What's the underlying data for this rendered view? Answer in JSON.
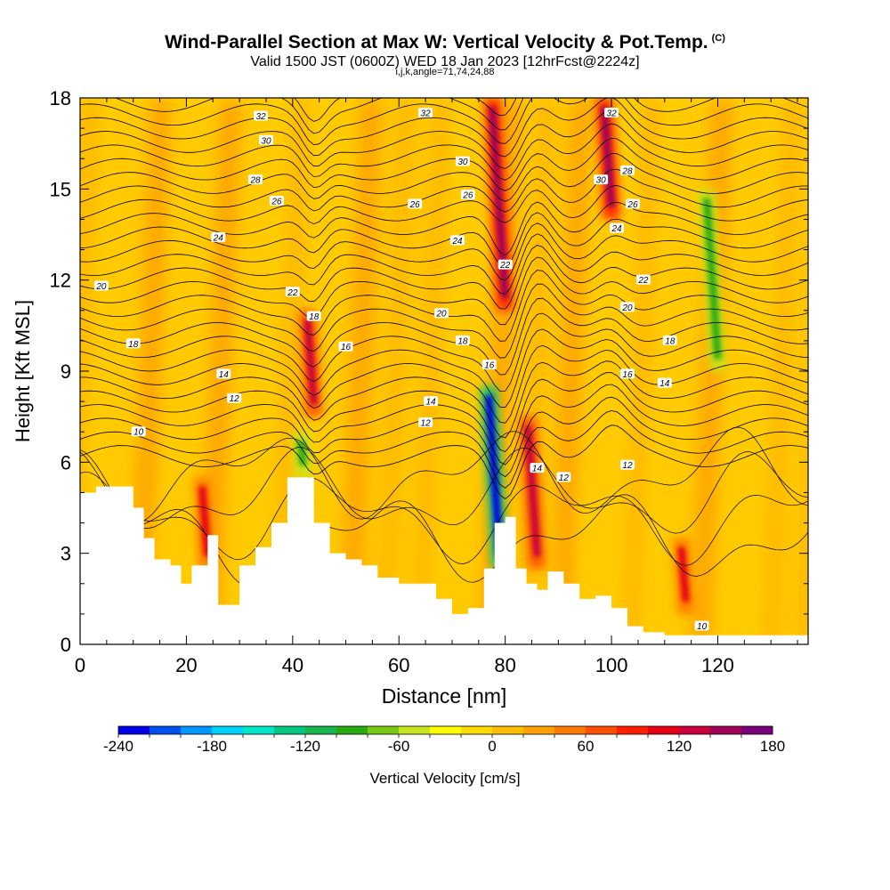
{
  "header": {
    "title": "Wind-Parallel Section at Max W: Vertical Velocity & Pot.Temp.",
    "title_mark": "(C)",
    "subtitle": "Valid 1500 JST (0600Z) WED 18 Jan 2023 [12hrFcst@2224z]",
    "subtitle2": "i,j,k,angle=71,74,24,88"
  },
  "chart_data": {
    "type": "heatmap",
    "xlabel": "Distance [nm]",
    "ylabel": "Height [Kft MSL]",
    "xlim": [
      0,
      137
    ],
    "ylim": [
      0,
      18
    ],
    "x_ticks": [
      0,
      20,
      40,
      60,
      80,
      100,
      120
    ],
    "y_ticks": [
      0,
      3,
      6,
      9,
      12,
      15,
      18
    ],
    "colorbar": {
      "label": "Vertical Velocity [cm/s]",
      "ticks": [
        -240,
        -180,
        -120,
        -60,
        0,
        60,
        120,
        180
      ],
      "colors": [
        "#0000e6",
        "#0050f0",
        "#0096ff",
        "#00d2ff",
        "#00e6c8",
        "#00c880",
        "#18b44c",
        "#28aa14",
        "#78c814",
        "#c8e61e",
        "#ffff00",
        "#ffdc00",
        "#ffbe00",
        "#ffa000",
        "#ff7800",
        "#ff5000",
        "#ff1e00",
        "#e60014",
        "#c8003c",
        "#a0005a",
        "#780078"
      ]
    },
    "background_value_label": "0",
    "updraft_bands": [
      {
        "x": 24,
        "top": 5.5,
        "bottom": 2.5,
        "value": 100
      },
      {
        "x": 44,
        "top": 11,
        "bottom": 7.5,
        "value": 120
      },
      {
        "x": 80,
        "top": 18,
        "bottom": 11,
        "value": 150
      },
      {
        "x": 86,
        "top": 7.5,
        "bottom": 2.5,
        "value": 130
      },
      {
        "x": 100,
        "top": 18,
        "bottom": 14,
        "value": 150
      },
      {
        "x": 114,
        "top": 3.5,
        "bottom": 1,
        "value": 100
      }
    ],
    "downdraft_bands": [
      {
        "x": 79,
        "top": 8.5,
        "bottom": 2.5,
        "value": -230
      },
      {
        "x": 42,
        "top": 7,
        "bottom": 5.5,
        "value": -90
      },
      {
        "x": 120,
        "top": 15,
        "bottom": 9,
        "value": -90
      }
    ],
    "isentrope_labels": [
      "10",
      "12",
      "14",
      "16",
      "18",
      "20",
      "22",
      "24",
      "26",
      "28",
      "30",
      "32"
    ],
    "terrain": [
      {
        "x": 0,
        "y": 5.0
      },
      {
        "x": 3,
        "y": 5.2
      },
      {
        "x": 8,
        "y": 5.2
      },
      {
        "x": 10,
        "y": 4.5
      },
      {
        "x": 12,
        "y": 3.5
      },
      {
        "x": 14,
        "y": 2.8
      },
      {
        "x": 17,
        "y": 2.6
      },
      {
        "x": 19,
        "y": 2.0
      },
      {
        "x": 21,
        "y": 2.6
      },
      {
        "x": 24,
        "y": 3.6
      },
      {
        "x": 26,
        "y": 1.3
      },
      {
        "x": 28,
        "y": 1.3
      },
      {
        "x": 30,
        "y": 2.6
      },
      {
        "x": 33,
        "y": 3.2
      },
      {
        "x": 36,
        "y": 4.0
      },
      {
        "x": 39,
        "y": 5.5
      },
      {
        "x": 41,
        "y": 5.5
      },
      {
        "x": 44,
        "y": 4.0
      },
      {
        "x": 47,
        "y": 3.0
      },
      {
        "x": 50,
        "y": 2.8
      },
      {
        "x": 53,
        "y": 2.6
      },
      {
        "x": 56,
        "y": 2.2
      },
      {
        "x": 60,
        "y": 2.0
      },
      {
        "x": 64,
        "y": 2.0
      },
      {
        "x": 67,
        "y": 1.5
      },
      {
        "x": 70,
        "y": 1.0
      },
      {
        "x": 73,
        "y": 1.2
      },
      {
        "x": 76,
        "y": 2.5
      },
      {
        "x": 78,
        "y": 4.0
      },
      {
        "x": 80,
        "y": 4.2
      },
      {
        "x": 82,
        "y": 2.5
      },
      {
        "x": 84,
        "y": 2.0
      },
      {
        "x": 86,
        "y": 1.8
      },
      {
        "x": 88,
        "y": 2.4
      },
      {
        "x": 91,
        "y": 2.0
      },
      {
        "x": 94,
        "y": 1.5
      },
      {
        "x": 97,
        "y": 1.6
      },
      {
        "x": 100,
        "y": 1.2
      },
      {
        "x": 103,
        "y": 0.6
      },
      {
        "x": 106,
        "y": 0.4
      },
      {
        "x": 110,
        "y": 0.3
      },
      {
        "x": 137,
        "y": 0.3
      }
    ]
  }
}
